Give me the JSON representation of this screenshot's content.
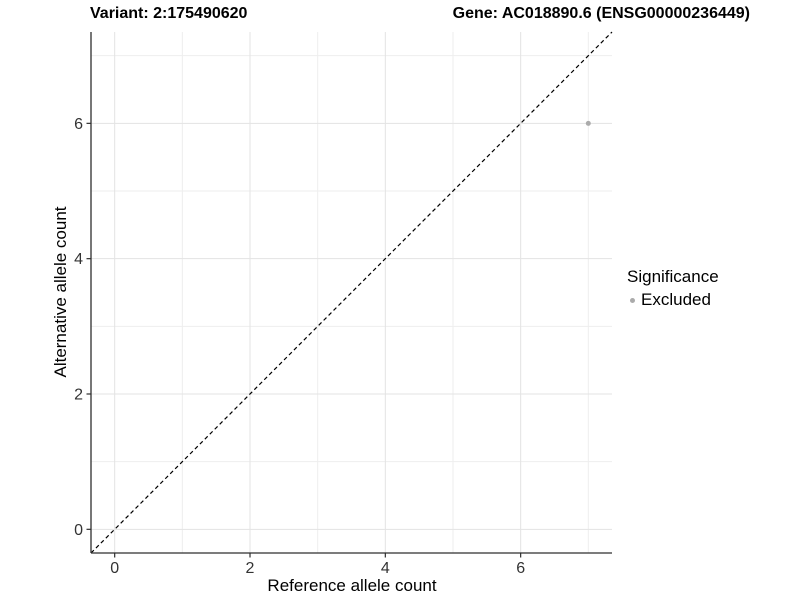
{
  "chart_data": {
    "type": "scatter",
    "titles": {
      "left": "Variant: 2:175490620",
      "right": "Gene: AC018890.6 (ENSG00000236449)"
    },
    "xlabel": "Reference allele count",
    "ylabel": "Alternative allele count",
    "xlim": [
      -0.35,
      7.35
    ],
    "ylim": [
      -0.35,
      7.35
    ],
    "x_ticks": [
      0,
      2,
      4,
      6
    ],
    "y_ticks": [
      0,
      2,
      4,
      6
    ],
    "x_minor_ticks": [
      1,
      3,
      5,
      7
    ],
    "y_minor_ticks": [
      1,
      3,
      5,
      7
    ],
    "grid": "major+minor",
    "legend_position": "right",
    "legend_title": "Significance",
    "series": [
      {
        "name": "Excluded",
        "color": "#ababab",
        "point_radius": 2.5,
        "points": [
          [
            7,
            6
          ]
        ]
      }
    ],
    "reference_line": {
      "style": "dashed",
      "color": "#000000",
      "from": [
        -0.35,
        -0.35
      ],
      "to": [
        7.35,
        7.35
      ]
    },
    "colors": {
      "grid_major": "#e3e3e3",
      "grid_minor": "#eeeeee",
      "axis_line": "#2e2e2e",
      "tick_label": "#333333",
      "panel_background": "#ffffff"
    }
  }
}
